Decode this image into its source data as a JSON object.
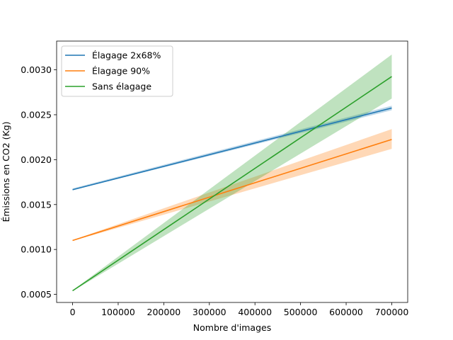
{
  "chart_data": {
    "type": "line",
    "title": "",
    "xlabel": "Nombre d'images",
    "ylabel": "Émissions en CO2 (Kg)",
    "xlim": [
      -35000,
      735000
    ],
    "ylim": [
      0.00041,
      0.00332
    ],
    "x_ticks": [
      0,
      100000,
      200000,
      300000,
      400000,
      500000,
      600000,
      700000
    ],
    "x_tick_labels": [
      "0",
      "100000",
      "200000",
      "300000",
      "400000",
      "500000",
      "600000",
      "700000"
    ],
    "y_ticks": [
      0.0005,
      0.001,
      0.0015,
      0.002,
      0.0025,
      0.003
    ],
    "y_tick_labels": [
      "0.0005",
      "0.0010",
      "0.0015",
      "0.0020",
      "0.0025",
      "0.0030"
    ],
    "grid": false,
    "legend_position": "top-left",
    "series": [
      {
        "name": "Élagage 2x68%",
        "color": "#1f77b4",
        "x": [
          0,
          700000
        ],
        "y": [
          0.001665,
          0.002575
        ],
        "band_lower": [
          0.00166,
          0.00255
        ],
        "band_upper": [
          0.00168,
          0.0026
        ]
      },
      {
        "name": "Élagage 90%",
        "color": "#ff7f0e",
        "x": [
          0,
          700000
        ],
        "y": [
          0.0011,
          0.002225
        ],
        "band_lower": [
          0.001095,
          0.00212
        ],
        "band_upper": [
          0.001105,
          0.00234
        ]
      },
      {
        "name": "Sans élagage",
        "color": "#2ca02c",
        "x": [
          0,
          700000
        ],
        "y": [
          0.00054,
          0.002925
        ],
        "band_lower": [
          0.000535,
          0.00268
        ],
        "band_upper": [
          0.000545,
          0.00317
        ]
      }
    ]
  }
}
